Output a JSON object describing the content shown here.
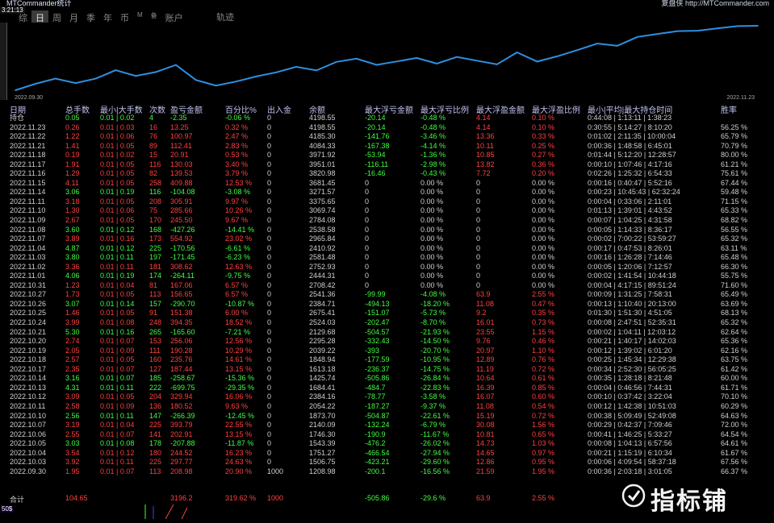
{
  "window": {
    "title": "MTCommander统计",
    "right_text": "复盘侠 http://MTCommander.com",
    "time": "3:21:13"
  },
  "periods": [
    {
      "label": "综",
      "active": false
    },
    {
      "label": "日",
      "active": true
    },
    {
      "label": "周",
      "active": false
    },
    {
      "label": "月",
      "active": false
    },
    {
      "label": "季",
      "active": false
    },
    {
      "label": "年",
      "active": false
    },
    {
      "label": "币",
      "active": false
    },
    {
      "label": "M",
      "active": false
    },
    {
      "label": "备",
      "active": false
    },
    {
      "label": "账户",
      "active": false
    }
  ],
  "track_label": "轨迹",
  "chart": {
    "start_date": "2022.09.30",
    "end_date": "2022.11.23"
  },
  "chart_data": {
    "type": "line",
    "x": [
      "2022.09.30",
      "2022.10.03",
      "2022.10.04",
      "2022.10.05",
      "2022.10.06",
      "2022.10.07",
      "2022.10.10",
      "2022.10.11",
      "2022.10.12",
      "2022.10.13",
      "2022.10.14",
      "2022.10.17",
      "2022.10.18",
      "2022.10.19",
      "2022.10.20",
      "2022.10.21",
      "2022.10.24",
      "2022.10.25",
      "2022.10.26",
      "2022.10.27",
      "2022.10.31",
      "2022.11.01",
      "2022.11.02",
      "2022.11.03",
      "2022.11.04",
      "2022.11.07",
      "2022.11.08",
      "2022.11.09",
      "2022.11.10",
      "2022.11.11",
      "2022.11.14",
      "2022.11.15",
      "2022.11.16",
      "2022.11.17",
      "2022.11.18",
      "2022.11.21",
      "2022.11.22",
      "2022.11.23"
    ],
    "series": [
      {
        "values": [
          1208.98,
          1506.75,
          1751.27,
          1543.39,
          1746.3,
          2140.09,
          1873.7,
          2054.22,
          2384.16,
          1684.41,
          1425.74,
          1613.18,
          1848.94,
          2039.22,
          2295.28,
          2129.68,
          2524.03,
          2675.41,
          2384.71,
          2541.36,
          2708.42,
          2444.31,
          2752.93,
          2581.48,
          2410.92,
          2965.84,
          2538.58,
          2784.08,
          3069.74,
          3375.65,
          3271.57,
          3681.45,
          3820.98,
          3951.01,
          3971.92,
          4084.33,
          4185.3,
          4198.55
        ]
      }
    ]
  },
  "headers": {
    "date": "日期",
    "total_lots": "总手数",
    "min_max_lots": "最小|大手数",
    "trades": "次数",
    "pnl": "盈亏金额",
    "pct": "百分比%",
    "deposit": "出入金",
    "balance": "余额",
    "max_float_loss": "最大浮亏金额",
    "max_float_loss_pct": "最大浮亏比例",
    "max_float_profit": "最大浮盈金额",
    "max_float_profit_pct": "最大浮盈比例",
    "hold_time": "最小|平均|最大持仓时间",
    "win_rate": "胜率"
  },
  "rows": [
    {
      "date": "持仓",
      "lots": "0.05",
      "minmax": "0.01 | 0.02",
      "trades": "4",
      "pnl": "-2.35",
      "pct": "-0.06 %",
      "dep": "0",
      "bal": "4198.55",
      "mfl": "-20.14",
      "mflp": "-0.48 %",
      "mfp": "4.14",
      "mfpp": "0.10 %",
      "hold": "0:44:08 | 1:13:11 | 1:38:23",
      "win": "",
      "c": "g"
    },
    {
      "date": "2022.11.23",
      "lots": "0.26",
      "minmax": "0.01 | 0.03",
      "trades": "16",
      "pnl": "13.25",
      "pct": "0.32 %",
      "dep": "0",
      "bal": "4198.55",
      "mfl": "-20.14",
      "mflp": "-0.48 %",
      "mfp": "4.14",
      "mfpp": "0.10 %",
      "hold": "0:30:55 | 5:14:27 | 8:10:20",
      "win": "56.25 %",
      "c": "r"
    },
    {
      "date": "2022.11.22",
      "lots": "1.22",
      "minmax": "0.01 | 0.06",
      "trades": "76",
      "pnl": "100.97",
      "pct": "2.47 %",
      "dep": "0",
      "bal": "4185.30",
      "mfl": "-141.76",
      "mflp": "-3.46 %",
      "mfp": "13.36",
      "mfpp": "0.33 %",
      "hold": "0:01:02 | 2:11:35 | 10:00:04",
      "win": "65.79 %",
      "c": "r"
    },
    {
      "date": "2022.11.21",
      "lots": "1.41",
      "minmax": "0.01 | 0.05",
      "trades": "89",
      "pnl": "112.41",
      "pct": "2.83 %",
      "dep": "0",
      "bal": "4084.33",
      "mfl": "-167.38",
      "mflp": "-4.14 %",
      "mfp": "10.11",
      "mfpp": "0.25 %",
      "hold": "0:00:36 | 1:48:58 | 6:45:01",
      "win": "70.79 %",
      "c": "r"
    },
    {
      "date": "2022.11.18",
      "lots": "0.19",
      "minmax": "0.01 | 0.02",
      "trades": "15",
      "pnl": "20.91",
      "pct": "0.53 %",
      "dep": "0",
      "bal": "3971.92",
      "mfl": "-53.94",
      "mflp": "-1.36 %",
      "mfp": "10.85",
      "mfpp": "0.27 %",
      "hold": "0:01:44 | 5:12:20 | 12:28:57",
      "win": "80.00 %",
      "c": "r"
    },
    {
      "date": "2022.11.17",
      "lots": "1.91",
      "minmax": "0.01 | 0.05",
      "trades": "116",
      "pnl": "130.03",
      "pct": "3.40 %",
      "dep": "0",
      "bal": "3951.01",
      "mfl": "-116.11",
      "mflp": "-2.98 %",
      "mfp": "13.82",
      "mfpp": "0.36 %",
      "hold": "0:00:10 | 1:07:46 | 4:17:16",
      "win": "61.21 %",
      "c": "r"
    },
    {
      "date": "2022.11.16",
      "lots": "1.29",
      "minmax": "0.01 | 0.05",
      "trades": "82",
      "pnl": "139.53",
      "pct": "3.79 %",
      "dep": "0",
      "bal": "3820.98",
      "mfl": "-16.46",
      "mflp": "-0.43 %",
      "mfp": "7.72",
      "mfpp": "0.20 %",
      "hold": "0:02:26 | 1:25:32 | 6:54:33",
      "win": "75.61 %",
      "c": "r"
    },
    {
      "date": "2022.11.15",
      "lots": "4.11",
      "minmax": "0.01 | 0.05",
      "trades": "258",
      "pnl": "409.88",
      "pct": "12.53 %",
      "dep": "0",
      "bal": "3681.45",
      "mfl": "0",
      "mflp": "0.00 %",
      "mfp": "0",
      "mfpp": "0.00 %",
      "hold": "0:00:16 | 0:40:47 | 5:52:16",
      "win": "67.44 %",
      "c": "r"
    },
    {
      "date": "2022.11.14",
      "lots": "3.06",
      "minmax": "0.01 | 0.19",
      "trades": "116",
      "pnl": "-104.08",
      "pct": "-3.08 %",
      "dep": "0",
      "bal": "3271.57",
      "mfl": "0",
      "mflp": "0.00 %",
      "mfp": "0",
      "mfpp": "0.00 %",
      "hold": "0:00:23 | 10:45:43 | 62:32:24",
      "win": "59.48 %",
      "c": "g"
    },
    {
      "date": "2022.11.11",
      "lots": "3.18",
      "minmax": "0.01 | 0.05",
      "trades": "208",
      "pnl": "305.91",
      "pct": "9.97 %",
      "dep": "0",
      "bal": "3375.65",
      "mfl": "0",
      "mflp": "0.00 %",
      "mfp": "0",
      "mfpp": "0.00 %",
      "hold": "0:00:04 | 0:33:06 | 2:11:01",
      "win": "71.15 %",
      "c": "r"
    },
    {
      "date": "2022.11.10",
      "lots": "1.30",
      "minmax": "0.01 | 0.06",
      "trades": "75",
      "pnl": "285.66",
      "pct": "10.26 %",
      "dep": "0",
      "bal": "3069.74",
      "mfl": "0",
      "mflp": "0.00 %",
      "mfp": "0",
      "mfpp": "0.00 %",
      "hold": "0:01:13 | 1:39:01 | 4:43:52",
      "win": "65.33 %",
      "c": "r"
    },
    {
      "date": "2022.11.09",
      "lots": "2.67",
      "minmax": "0.01 | 0.05",
      "trades": "170",
      "pnl": "245.50",
      "pct": "9.67 %",
      "dep": "0",
      "bal": "2784.08",
      "mfl": "0",
      "mflp": "0.00 %",
      "mfp": "0",
      "mfpp": "0.00 %",
      "hold": "0:00:07 | 1:04:25 | 4:31:58",
      "win": "68.82 %",
      "c": "r"
    },
    {
      "date": "2022.11.08",
      "lots": "3.60",
      "minmax": "0.01 | 0.12",
      "trades": "168",
      "pnl": "-427.26",
      "pct": "-14.41 %",
      "dep": "0",
      "bal": "2538.58",
      "mfl": "0",
      "mflp": "0.00 %",
      "mfp": "0",
      "mfpp": "0.00 %",
      "hold": "0:00:05 | 1:14:33 | 8:36:17",
      "win": "56.55 %",
      "c": "g"
    },
    {
      "date": "2022.11.07",
      "lots": "3.89",
      "minmax": "0.01 | 0.16",
      "trades": "173",
      "pnl": "554.92",
      "pct": "23.02 %",
      "dep": "0",
      "bal": "2965.84",
      "mfl": "0",
      "mflp": "0.00 %",
      "mfp": "0",
      "mfpp": "0.00 %",
      "hold": "0:00:02 | 7:00:22 | 53:59:27",
      "win": "65.32 %",
      "c": "r"
    },
    {
      "date": "2022.11.04",
      "lots": "4.87",
      "minmax": "0.01 | 0.12",
      "trades": "225",
      "pnl": "-170.56",
      "pct": "-6.61 %",
      "dep": "0",
      "bal": "2410.92",
      "mfl": "0",
      "mflp": "0.00 %",
      "mfp": "0",
      "mfpp": "0.00 %",
      "hold": "0:00:17 | 0:47:53 | 8:26:01",
      "win": "63.11 %",
      "c": "g"
    },
    {
      "date": "2022.11.03",
      "lots": "3.80",
      "minmax": "0.01 | 0.11",
      "trades": "197",
      "pnl": "-171.45",
      "pct": "-6.23 %",
      "dep": "0",
      "bal": "2581.48",
      "mfl": "0",
      "mflp": "0.00 %",
      "mfp": "0",
      "mfpp": "0.00 %",
      "hold": "0:00:16 | 1:26:28 | 7:14:46",
      "win": "65.48 %",
      "c": "g"
    },
    {
      "date": "2022.11.02",
      "lots": "3.36",
      "minmax": "0.01 | 0.11",
      "trades": "181",
      "pnl": "308.62",
      "pct": "12.63 %",
      "dep": "0",
      "bal": "2752.93",
      "mfl": "0",
      "mflp": "0.00 %",
      "mfp": "0",
      "mfpp": "0.00 %",
      "hold": "0:00:05 | 1:20:06 | 7:12:57",
      "win": "66.30 %",
      "c": "r"
    },
    {
      "date": "2022.11.01",
      "lots": "4.06",
      "minmax": "0.01 | 0.19",
      "trades": "174",
      "pnl": "-264.11",
      "pct": "-9.75 %",
      "dep": "0",
      "bal": "2444.31",
      "mfl": "0",
      "mflp": "0.00 %",
      "mfp": "0",
      "mfpp": "0.00 %",
      "hold": "0:00:02 | 1:41:54 | 10:44:18",
      "win": "55.75 %",
      "c": "g"
    },
    {
      "date": "2022.10.31",
      "lots": "1.23",
      "minmax": "0.01 | 0.04",
      "trades": "81",
      "pnl": "167.06",
      "pct": "6.57 %",
      "dep": "0",
      "bal": "2708.42",
      "mfl": "0",
      "mflp": "0.00 %",
      "mfp": "0",
      "mfpp": "0.00 %",
      "hold": "0:00:04 | 4:17:15 | 89:51:24",
      "win": "71.60 %",
      "c": "r"
    },
    {
      "date": "2022.10.27",
      "lots": "1.73",
      "minmax": "0.01 | 0.05",
      "trades": "113",
      "pnl": "156.65",
      "pct": "6.57 %",
      "dep": "0",
      "bal": "2541.36",
      "mfl": "-99.99",
      "mflp": "-4.08 %",
      "mfp": "63.9",
      "mfpp": "2.55 %",
      "hold": "0:00:09 | 1:31:25 | 7:58:31",
      "win": "65.49 %",
      "c": "r"
    },
    {
      "date": "2022.10.26",
      "lots": "3.07",
      "minmax": "0.01 | 0.14",
      "trades": "157",
      "pnl": "-290.70",
      "pct": "-10.87 %",
      "dep": "0",
      "bal": "2384.71",
      "mfl": "-494.13",
      "mflp": "-18.20 %",
      "mfp": "11.08",
      "mfpp": "0.47 %",
      "hold": "0:00:13 | 1:10:40 | 20:13:00",
      "win": "63.69 %",
      "c": "g"
    },
    {
      "date": "2022.10.25",
      "lots": "1.46",
      "minmax": "0.01 | 0.05",
      "trades": "91",
      "pnl": "151.38",
      "pct": "6.00 %",
      "dep": "0",
      "bal": "2675.41",
      "mfl": "-151.07",
      "mflp": "-5.73 %",
      "mfp": "9.2",
      "mfpp": "0.35 %",
      "hold": "0:01:30 | 1:51:30 | 4:51:05",
      "win": "68.13 %",
      "c": "r"
    },
    {
      "date": "2022.10.24",
      "lots": "3.99",
      "minmax": "0.01 | 0.08",
      "trades": "248",
      "pnl": "394.35",
      "pct": "18.52 %",
      "dep": "0",
      "bal": "2524.03",
      "mfl": "-202.47",
      "mflp": "-8.70 %",
      "mfp": "16.01",
      "mfpp": "0.73 %",
      "hold": "0:00:08 | 2:47:51 | 52:35:31",
      "win": "65.32 %",
      "c": "r"
    },
    {
      "date": "2022.10.21",
      "lots": "5.30",
      "minmax": "0.01 | 0.16",
      "trades": "265",
      "pnl": "-165.60",
      "pct": "-7.21 %",
      "dep": "0",
      "bal": "2129.68",
      "mfl": "-504.57",
      "mflp": "-21.93 %",
      "mfp": "23.55",
      "mfpp": "1.15 %",
      "hold": "0:00:02 | 1:04:11 | 12:03:12",
      "win": "62.64 %",
      "c": "g"
    },
    {
      "date": "2022.10.20",
      "lots": "2.74",
      "minmax": "0.01 | 0.07",
      "trades": "153",
      "pnl": "256.06",
      "pct": "12.56 %",
      "dep": "0",
      "bal": "2295.28",
      "mfl": "-332.43",
      "mflp": "-14.50 %",
      "mfp": "9.76",
      "mfpp": "0.46 %",
      "hold": "0:00:21 | 1:40:17 | 14:02:03",
      "win": "65.36 %",
      "c": "r"
    },
    {
      "date": "2022.10.19",
      "lots": "2.05",
      "minmax": "0.01 | 0.09",
      "trades": "111",
      "pnl": "190.28",
      "pct": "10.29 %",
      "dep": "0",
      "bal": "2039.22",
      "mfl": "-393",
      "mflp": "-20.70 %",
      "mfp": "20.97",
      "mfpp": "1.10 %",
      "hold": "0:00:12 | 1:39:02 | 6:01:20",
      "win": "62.16 %",
      "c": "r"
    },
    {
      "date": "2022.10.18",
      "lots": "2.57",
      "minmax": "0.01 | 0.05",
      "trades": "160",
      "pnl": "235.76",
      "pct": "14.61 %",
      "dep": "0",
      "bal": "1848.94",
      "mfl": "-177.59",
      "mflp": "-10.95 %",
      "mfp": "12.89",
      "mfpp": "0.76 %",
      "hold": "0:00:25 | 1:45:34 | 12:29:38",
      "win": "63.75 %",
      "c": "r"
    },
    {
      "date": "2022.10.17",
      "lots": "2.35",
      "minmax": "0.01 | 0.07",
      "trades": "127",
      "pnl": "187.44",
      "pct": "13.15 %",
      "dep": "0",
      "bal": "1613.18",
      "mfl": "-236.37",
      "mflp": "-14.75 %",
      "mfp": "11.19",
      "mfpp": "0.72 %",
      "hold": "0:00:34 | 2:52:30 | 56:05:25",
      "win": "61.42 %",
      "c": "r"
    },
    {
      "date": "2022.10.14",
      "lots": "3.16",
      "minmax": "0.01 | 0.07",
      "trades": "185",
      "pnl": "-258.67",
      "pct": "-15.36 %",
      "dep": "0",
      "bal": "1425.74",
      "mfl": "-505.86",
      "mflp": "-26.84 %",
      "mfp": "10.64",
      "mfpp": "0.61 %",
      "hold": "0:00:35 | 1:28:18 | 8:21:48",
      "win": "60.00 %",
      "c": "g"
    },
    {
      "date": "2022.10.13",
      "lots": "4.31",
      "minmax": "0.01 | 0.11",
      "trades": "222",
      "pnl": "-699.75",
      "pct": "-29.35 %",
      "dep": "0",
      "bal": "1684.41",
      "mfl": "-484.7",
      "mflp": "-22.83 %",
      "mfp": "16.39",
      "mfpp": "0.85 %",
      "hold": "0:00:04 | 0:46:56 | 7:44:31",
      "win": "61.71 %",
      "c": "g"
    },
    {
      "date": "2022.10.12",
      "lots": "3.09",
      "minmax": "0.01 | 0.05",
      "trades": "204",
      "pnl": "329.94",
      "pct": "16.06 %",
      "dep": "0",
      "bal": "2384.16",
      "mfl": "-78.77",
      "mflp": "-3.58 %",
      "mfp": "16.07",
      "mfpp": "0.60 %",
      "hold": "0:00:10 | 0:37:42 | 3:22:04",
      "win": "70.10 %",
      "c": "r"
    },
    {
      "date": "2022.10.11",
      "lots": "2.58",
      "minmax": "0.01 | 0.09",
      "trades": "136",
      "pnl": "180.52",
      "pct": "9.63 %",
      "dep": "0",
      "bal": "2054.22",
      "mfl": "-187.27",
      "mflp": "-9.37 %",
      "mfp": "11.08",
      "mfpp": "0.54 %",
      "hold": "0:00:12 | 1:42:38 | 10:51:03",
      "win": "60.29 %",
      "c": "r"
    },
    {
      "date": "2022.10.10",
      "lots": "2.56",
      "minmax": "0.01 | 0.11",
      "trades": "147",
      "pnl": "-266.39",
      "pct": "-12.45 %",
      "dep": "0",
      "bal": "1873.70",
      "mfl": "-504.87",
      "mflp": "-22.61 %",
      "mfp": "15.19",
      "mfpp": "0.72 %",
      "hold": "0:00:38 | 5:09:49 | 52:49:08",
      "win": "64.63 %",
      "c": "g"
    },
    {
      "date": "2022.10.07",
      "lots": "3.19",
      "minmax": "0.01 | 0.04",
      "trades": "225",
      "pnl": "393.79",
      "pct": "22.55 %",
      "dep": "0",
      "bal": "2140.09",
      "mfl": "-132.24",
      "mflp": "-6.79 %",
      "mfp": "30.08",
      "mfpp": "1.56 %",
      "hold": "0:00:29 | 0:42:37 | 7:09:46",
      "win": "72.00 %",
      "c": "r"
    },
    {
      "date": "2022.10.06",
      "lots": "2.55",
      "minmax": "0.01 | 0.07",
      "trades": "141",
      "pnl": "202.91",
      "pct": "13.15 %",
      "dep": "0",
      "bal": "1746.30",
      "mfl": "-190.9",
      "mflp": "-11.67 %",
      "mfp": "10.81",
      "mfpp": "0.65 %",
      "hold": "0:00:41 | 1:46:25 | 5:33:27",
      "win": "64.54 %",
      "c": "r"
    },
    {
      "date": "2022.10.05",
      "lots": "3.03",
      "minmax": "0.01 | 0.08",
      "trades": "178",
      "pnl": "-207.88",
      "pct": "-11.87 %",
      "dep": "0",
      "bal": "1543.39",
      "mfl": "-476.2",
      "mflp": "-26.02 %",
      "mfp": "14.73",
      "mfpp": "1.03 %",
      "hold": "0:00:08 | 1:04:13 | 6:57:56",
      "win": "64.61 %",
      "c": "g"
    },
    {
      "date": "2022.10.04",
      "lots": "3.54",
      "minmax": "0.01 | 0.12",
      "trades": "180",
      "pnl": "244.52",
      "pct": "16.23 %",
      "dep": "0",
      "bal": "1751.27",
      "mfl": "-466.54",
      "mflp": "-27.94 %",
      "mfp": "14.65",
      "mfpp": "0.97 %",
      "hold": "0:00:21 | 1:15:19 | 6:10:34",
      "win": "61.67 %",
      "c": "r"
    },
    {
      "date": "2022.10.03",
      "lots": "3.92",
      "minmax": "0.01 | 0.11",
      "trades": "225",
      "pnl": "297.77",
      "pct": "24.63 %",
      "dep": "0",
      "bal": "1506.75",
      "mfl": "-423.21",
      "mflp": "-29.60 %",
      "mfp": "12.86",
      "mfpp": "0.95 %",
      "hold": "0:00:06 | 4:09:54 | 58:37:18",
      "win": "67.56 %",
      "c": "r"
    },
    {
      "date": "2022.09.30",
      "lots": "1.95",
      "minmax": "0.01 | 0.07",
      "trades": "113",
      "pnl": "208.98",
      "pct": "20.90 %",
      "dep": "1000",
      "bal": "1208.98",
      "mfl": "-200.1",
      "mflp": "-16.56 %",
      "mfp": "21.59",
      "mfpp": "1.95 %",
      "hold": "0:00:36 | 2:03:18 | 3:01:05",
      "win": "66.37 %",
      "c": "r"
    }
  ],
  "total": {
    "label": "合计",
    "lots": "104.65",
    "pnl": "3196.2",
    "pct": "319.62 %",
    "dep": "1000",
    "mfl": "-505.86",
    "mflp": "-29.6 %",
    "mfp": "63.9",
    "mfpp": "2.55 %"
  },
  "bottom_label": "50$",
  "watermark": "指标铺"
}
